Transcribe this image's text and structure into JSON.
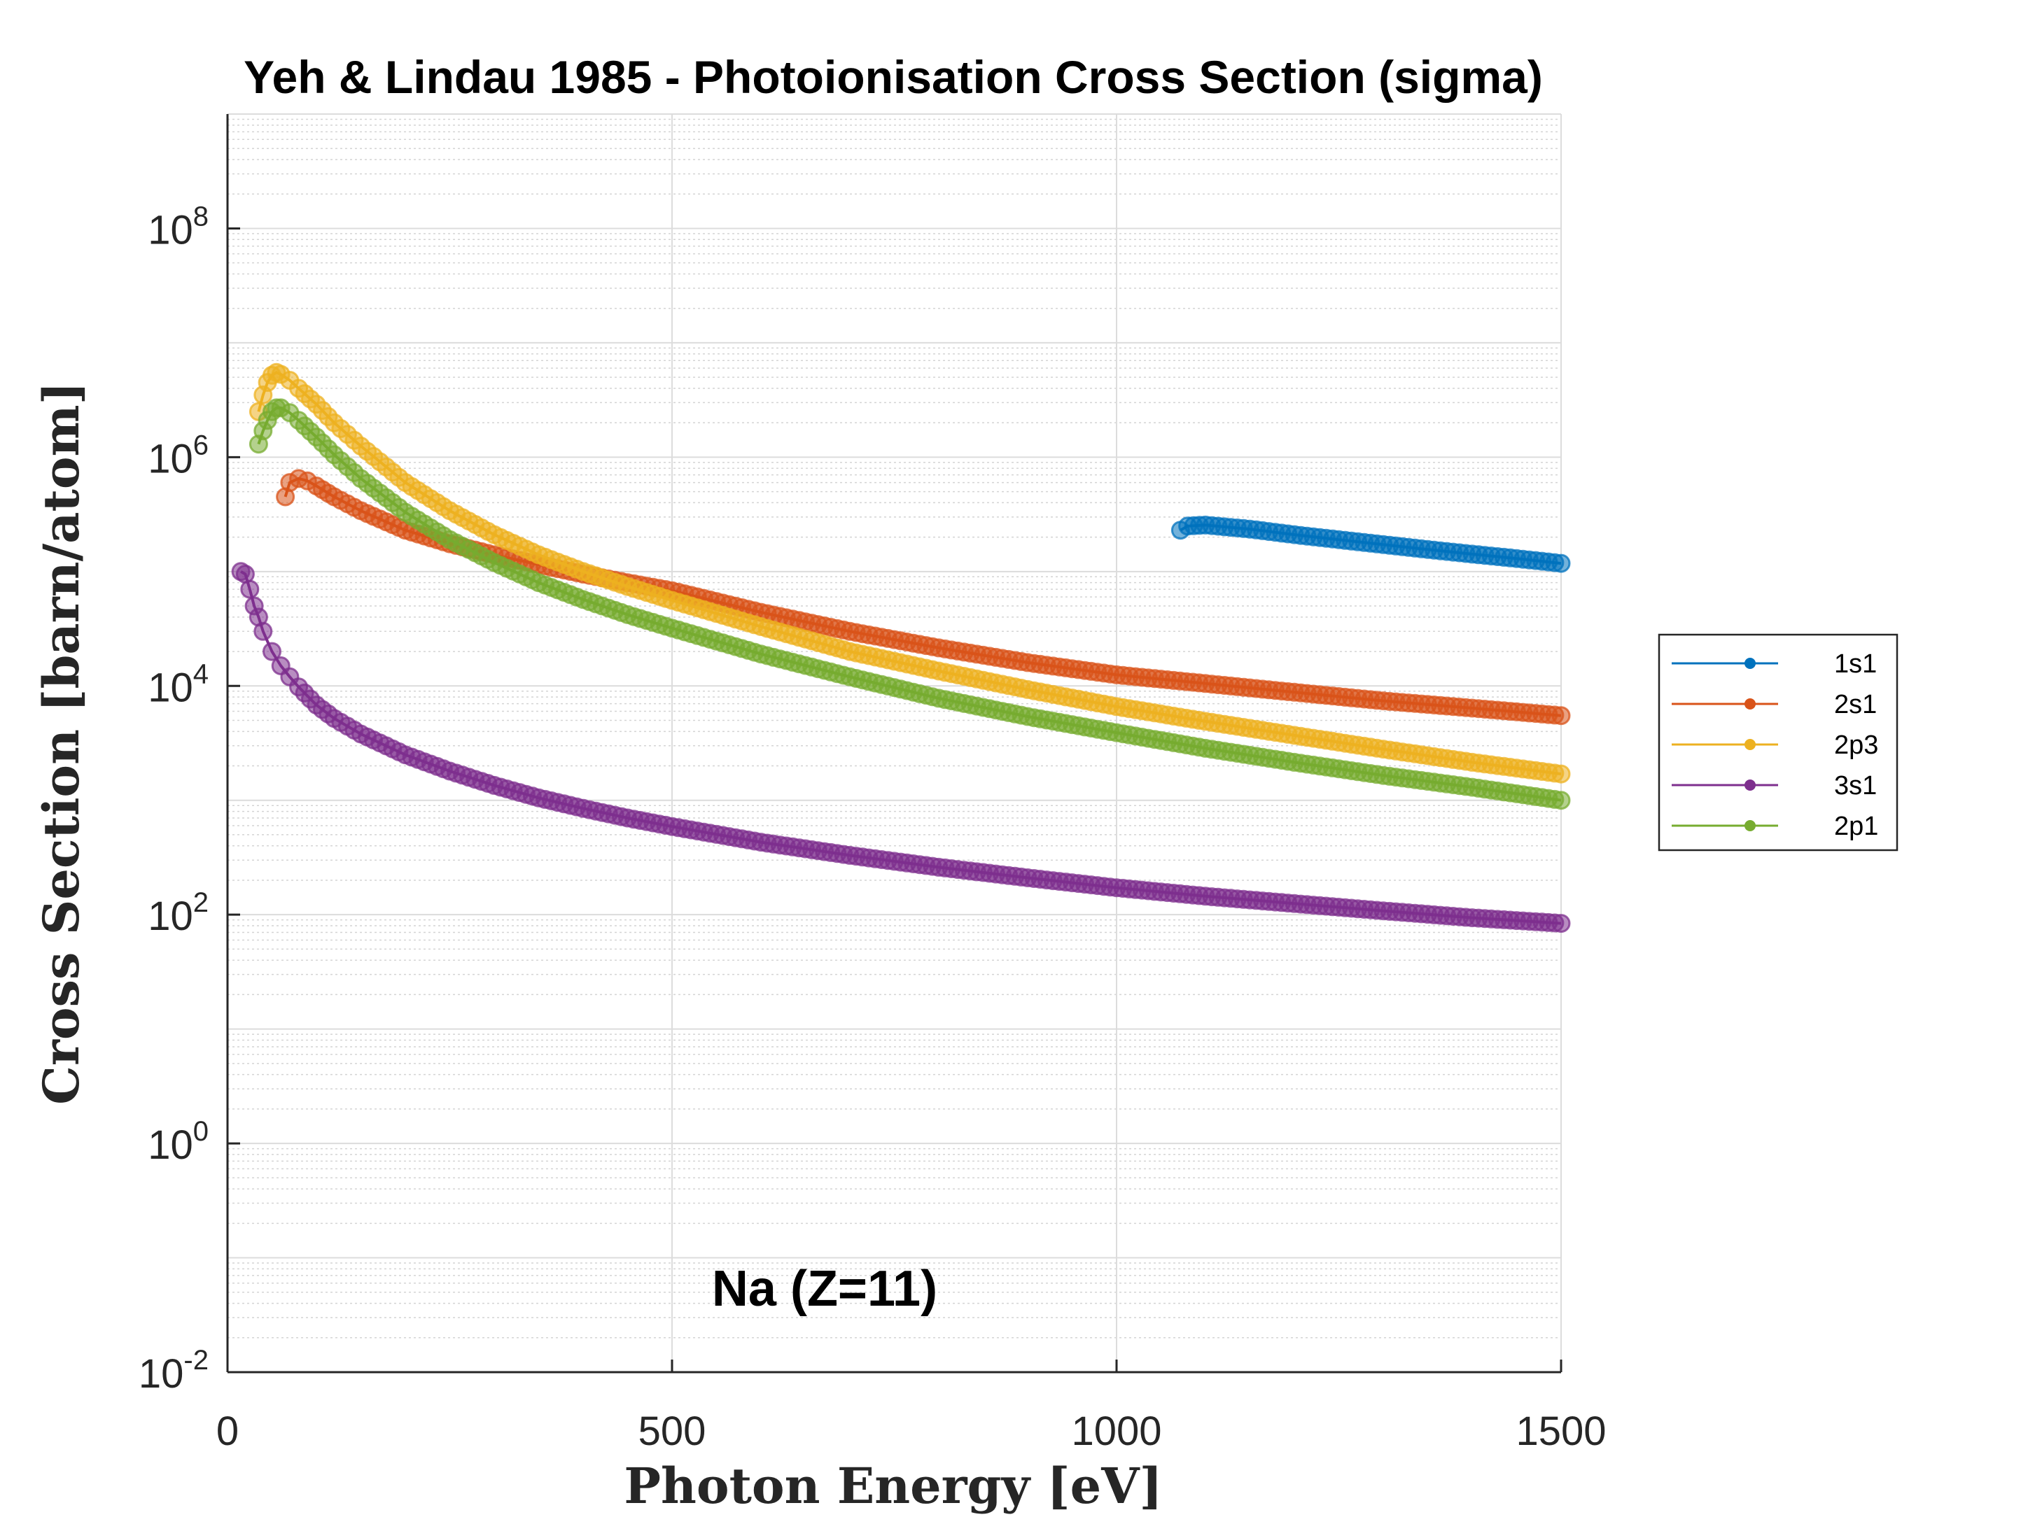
{
  "chart_data": {
    "type": "scatter",
    "title": "Yeh & Lindau 1985 - Photoionisation Cross Section (sigma)",
    "xlabel": "Photon Energy [eV]",
    "ylabel": "Cross Section [barn/atom]",
    "annotation": "Na (Z=11)",
    "xlim": [
      0,
      1500
    ],
    "ylim": [
      0.01,
      1000000000
    ],
    "yscale": "log",
    "grid": true,
    "minor_grid": true,
    "legend_position": "right, outside",
    "x_ticks": [
      {
        "value": 0,
        "label": "0"
      },
      {
        "value": 500,
        "label": "500"
      },
      {
        "value": 1000,
        "label": "1000"
      },
      {
        "value": 1500,
        "label": "1500"
      }
    ],
    "y_ticks": [
      {
        "value": 0.01,
        "base": "10",
        "exp": "-2"
      },
      {
        "value": 1,
        "base": "10",
        "exp": "0"
      },
      {
        "value": 100,
        "base": "10",
        "exp": "2"
      },
      {
        "value": 10000,
        "base": "10",
        "exp": "4"
      },
      {
        "value": 1000000,
        "base": "10",
        "exp": "6"
      },
      {
        "value": 100000000,
        "base": "10",
        "exp": "8"
      }
    ],
    "series": [
      {
        "name": "1s1",
        "color": "#0072BD",
        "x": [
          1072,
          1080,
          1100,
          1150,
          1200,
          1250,
          1300,
          1350,
          1400,
          1450,
          1500
        ],
        "y": [
          230000,
          250000,
          255000,
          235000,
          210000,
          190000,
          172000,
          156000,
          142000,
          130000,
          118000
        ]
      },
      {
        "name": "2s1",
        "color": "#D95319",
        "x": [
          65,
          70,
          80,
          90,
          100,
          120,
          150,
          200,
          250,
          300,
          350,
          400,
          450,
          500,
          600,
          700,
          800,
          900,
          1000,
          1100,
          1200,
          1300,
          1400,
          1500
        ],
        "y": [
          450000,
          600000,
          650000,
          620000,
          560000,
          450000,
          340000,
          230000,
          175000,
          140000,
          115000,
          95000,
          80000,
          68000,
          44000,
          30000,
          21500,
          16000,
          12500,
          10500,
          8800,
          7400,
          6400,
          5500
        ]
      },
      {
        "name": "2p3",
        "color": "#EDB120",
        "x": [
          35,
          40,
          45,
          50,
          55,
          60,
          70,
          80,
          100,
          120,
          150,
          200,
          250,
          300,
          350,
          400,
          450,
          500,
          600,
          700,
          800,
          900,
          1000,
          1100,
          1200,
          1300,
          1400,
          1500
        ],
        "y": [
          2500000,
          3500000,
          4500000,
          5200000,
          5500000,
          5300000,
          4700000,
          4000000,
          2900000,
          2000000,
          1250000,
          600000,
          340000,
          210000,
          140000,
          100000,
          74000,
          56000,
          33000,
          20000,
          13500,
          9300,
          6600,
          4900,
          3700,
          2800,
          2150,
          1700
        ]
      },
      {
        "name": "3s1",
        "color": "#7E2F8E",
        "x": [
          15,
          20,
          25,
          30,
          35,
          40,
          50,
          60,
          70,
          80,
          100,
          120,
          150,
          200,
          250,
          300,
          350,
          400,
          450,
          500,
          600,
          700,
          800,
          900,
          1000,
          1100,
          1200,
          1300,
          1400,
          1500
        ],
        "y": [
          100000,
          95000,
          70000,
          50000,
          40000,
          30000,
          20000,
          15000,
          12000,
          9800,
          6800,
          5200,
          3800,
          2500,
          1800,
          1350,
          1050,
          850,
          700,
          590,
          430,
          330,
          260,
          210,
          172,
          145,
          125,
          108,
          94,
          84
        ]
      },
      {
        "name": "2p1",
        "color": "#77AC30",
        "x": [
          35,
          40,
          45,
          50,
          55,
          60,
          70,
          80,
          100,
          120,
          150,
          200,
          250,
          300,
          350,
          400,
          450,
          500,
          600,
          700,
          800,
          900,
          1000,
          1100,
          1200,
          1300,
          1400,
          1500
        ],
        "y": [
          1300000,
          1700000,
          2100000,
          2500000,
          2700000,
          2700000,
          2450000,
          2100000,
          1500000,
          1050000,
          650000,
          330000,
          190000,
          120000,
          80000,
          57000,
          42000,
          32000,
          19000,
          12000,
          7800,
          5400,
          3900,
          2850,
          2150,
          1650,
          1300,
          1000
        ]
      }
    ]
  }
}
